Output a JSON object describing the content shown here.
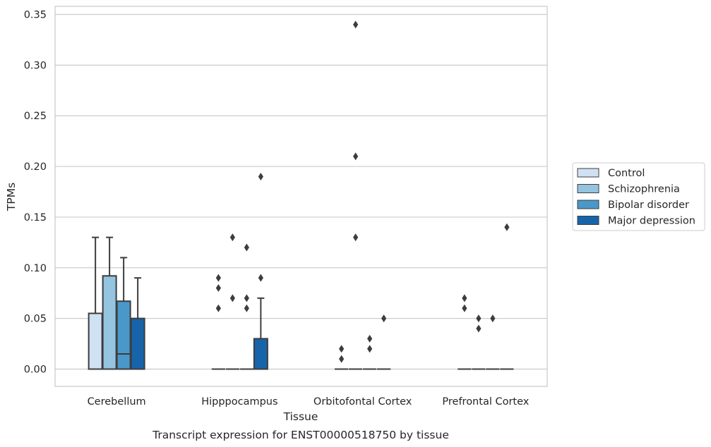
{
  "chart_data": {
    "type": "box",
    "title": "Transcript expression for ENST00000518750 by tissue",
    "xlabel": "Tissue",
    "ylabel": "TPMs",
    "ylim": [
      -0.017,
      0.358
    ],
    "yticks": [
      0.0,
      0.05,
      0.1,
      0.15,
      0.2,
      0.25,
      0.3,
      0.35
    ],
    "ytick_labels": [
      "0.00",
      "0.05",
      "0.10",
      "0.15",
      "0.20",
      "0.25",
      "0.30",
      "0.35"
    ],
    "grid": true,
    "legend_position": "right",
    "categories": [
      "Cerebellum",
      "Hipppocampus",
      "Orbitofontal Cortex",
      "Prefrontal Cortex"
    ],
    "series": [
      {
        "name": "Control",
        "color": "#d0e1f2",
        "boxes": [
          {
            "q1": 0.0,
            "median": 0.0,
            "q3": 0.055,
            "whisker_low": 0.0,
            "whisker_high": 0.13,
            "outliers": []
          },
          {
            "q1": 0.0,
            "median": 0.0,
            "q3": 0.0,
            "whisker_low": 0.0,
            "whisker_high": 0.0,
            "outliers": [
              0.06,
              0.08,
              0.09
            ]
          },
          {
            "q1": 0.0,
            "median": 0.0,
            "q3": 0.0,
            "whisker_low": 0.0,
            "whisker_high": 0.0,
            "outliers": [
              0.01,
              0.02
            ]
          },
          {
            "q1": 0.0,
            "median": 0.0,
            "q3": 0.0,
            "whisker_low": 0.0,
            "whisker_high": 0.0,
            "outliers": [
              0.06,
              0.07
            ]
          }
        ]
      },
      {
        "name": "Schizophrenia",
        "color": "#94c4df",
        "boxes": [
          {
            "q1": 0.0,
            "median": 0.0,
            "q3": 0.092,
            "whisker_low": 0.0,
            "whisker_high": 0.13,
            "outliers": []
          },
          {
            "q1": 0.0,
            "median": 0.0,
            "q3": 0.0,
            "whisker_low": 0.0,
            "whisker_high": 0.0,
            "outliers": [
              0.07,
              0.13
            ]
          },
          {
            "q1": 0.0,
            "median": 0.0,
            "q3": 0.0,
            "whisker_low": 0.0,
            "whisker_high": 0.0,
            "outliers": [
              0.13,
              0.21,
              0.34
            ]
          },
          {
            "q1": 0.0,
            "median": 0.0,
            "q3": 0.0,
            "whisker_low": 0.0,
            "whisker_high": 0.0,
            "outliers": [
              0.04,
              0.05
            ]
          }
        ]
      },
      {
        "name": "Bipolar disorder",
        "color": "#4a98c9",
        "boxes": [
          {
            "q1": 0.0,
            "median": 0.015,
            "q3": 0.067,
            "whisker_low": 0.0,
            "whisker_high": 0.11,
            "outliers": []
          },
          {
            "q1": 0.0,
            "median": 0.0,
            "q3": 0.0,
            "whisker_low": 0.0,
            "whisker_high": 0.0,
            "outliers": [
              0.06,
              0.07,
              0.12
            ]
          },
          {
            "q1": 0.0,
            "median": 0.0,
            "q3": 0.0,
            "whisker_low": 0.0,
            "whisker_high": 0.0,
            "outliers": [
              0.02,
              0.03
            ]
          },
          {
            "q1": 0.0,
            "median": 0.0,
            "q3": 0.0,
            "whisker_low": 0.0,
            "whisker_high": 0.0,
            "outliers": [
              0.05
            ]
          }
        ]
      },
      {
        "name": "Major depression",
        "color": "#1764ab",
        "boxes": [
          {
            "q1": 0.0,
            "median": 0.0,
            "q3": 0.05,
            "whisker_low": 0.0,
            "whisker_high": 0.09,
            "outliers": []
          },
          {
            "q1": 0.0,
            "median": 0.0,
            "q3": 0.03,
            "whisker_low": 0.0,
            "whisker_high": 0.07,
            "outliers": [
              0.09,
              0.19
            ]
          },
          {
            "q1": 0.0,
            "median": 0.0,
            "q3": 0.0,
            "whisker_low": 0.0,
            "whisker_high": 0.0,
            "outliers": [
              0.05
            ]
          },
          {
            "q1": 0.0,
            "median": 0.0,
            "q3": 0.0,
            "whisker_low": 0.0,
            "whisker_high": 0.0,
            "outliers": [
              0.14
            ]
          }
        ]
      }
    ]
  }
}
